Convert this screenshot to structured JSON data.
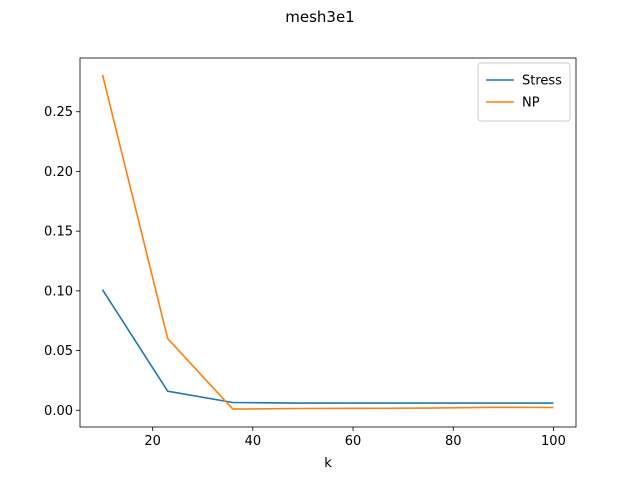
{
  "chart_data": {
    "type": "line",
    "title": "mesh3e1",
    "xlabel": "k",
    "ylabel": "",
    "xlim": [
      5.5,
      104.5
    ],
    "ylim": [
      -0.014,
      0.295
    ],
    "xticks": [
      20,
      40,
      60,
      80,
      100
    ],
    "xtick_labels": [
      "20",
      "40",
      "60",
      "80",
      "100"
    ],
    "yticks": [
      0.0,
      0.05,
      0.1,
      0.15,
      0.2,
      0.25
    ],
    "ytick_labels": [
      "0.00",
      "0.05",
      "0.10",
      "0.15",
      "0.20",
      "0.25"
    ],
    "grid": false,
    "legend_position": "top-right",
    "series": [
      {
        "name": "Stress",
        "color": "#1f77b4",
        "x": [
          10,
          23,
          36,
          49,
          62,
          75,
          88,
          100
        ],
        "values": [
          0.101,
          0.016,
          0.0065,
          0.006,
          0.006,
          0.006,
          0.006,
          0.006
        ]
      },
      {
        "name": "NP",
        "color": "#ff7f0e",
        "x": [
          10,
          23,
          36,
          49,
          62,
          75,
          88,
          100
        ],
        "values": [
          0.281,
          0.06,
          0.001,
          0.0015,
          0.0017,
          0.0018,
          0.0025,
          0.0023
        ]
      }
    ]
  }
}
